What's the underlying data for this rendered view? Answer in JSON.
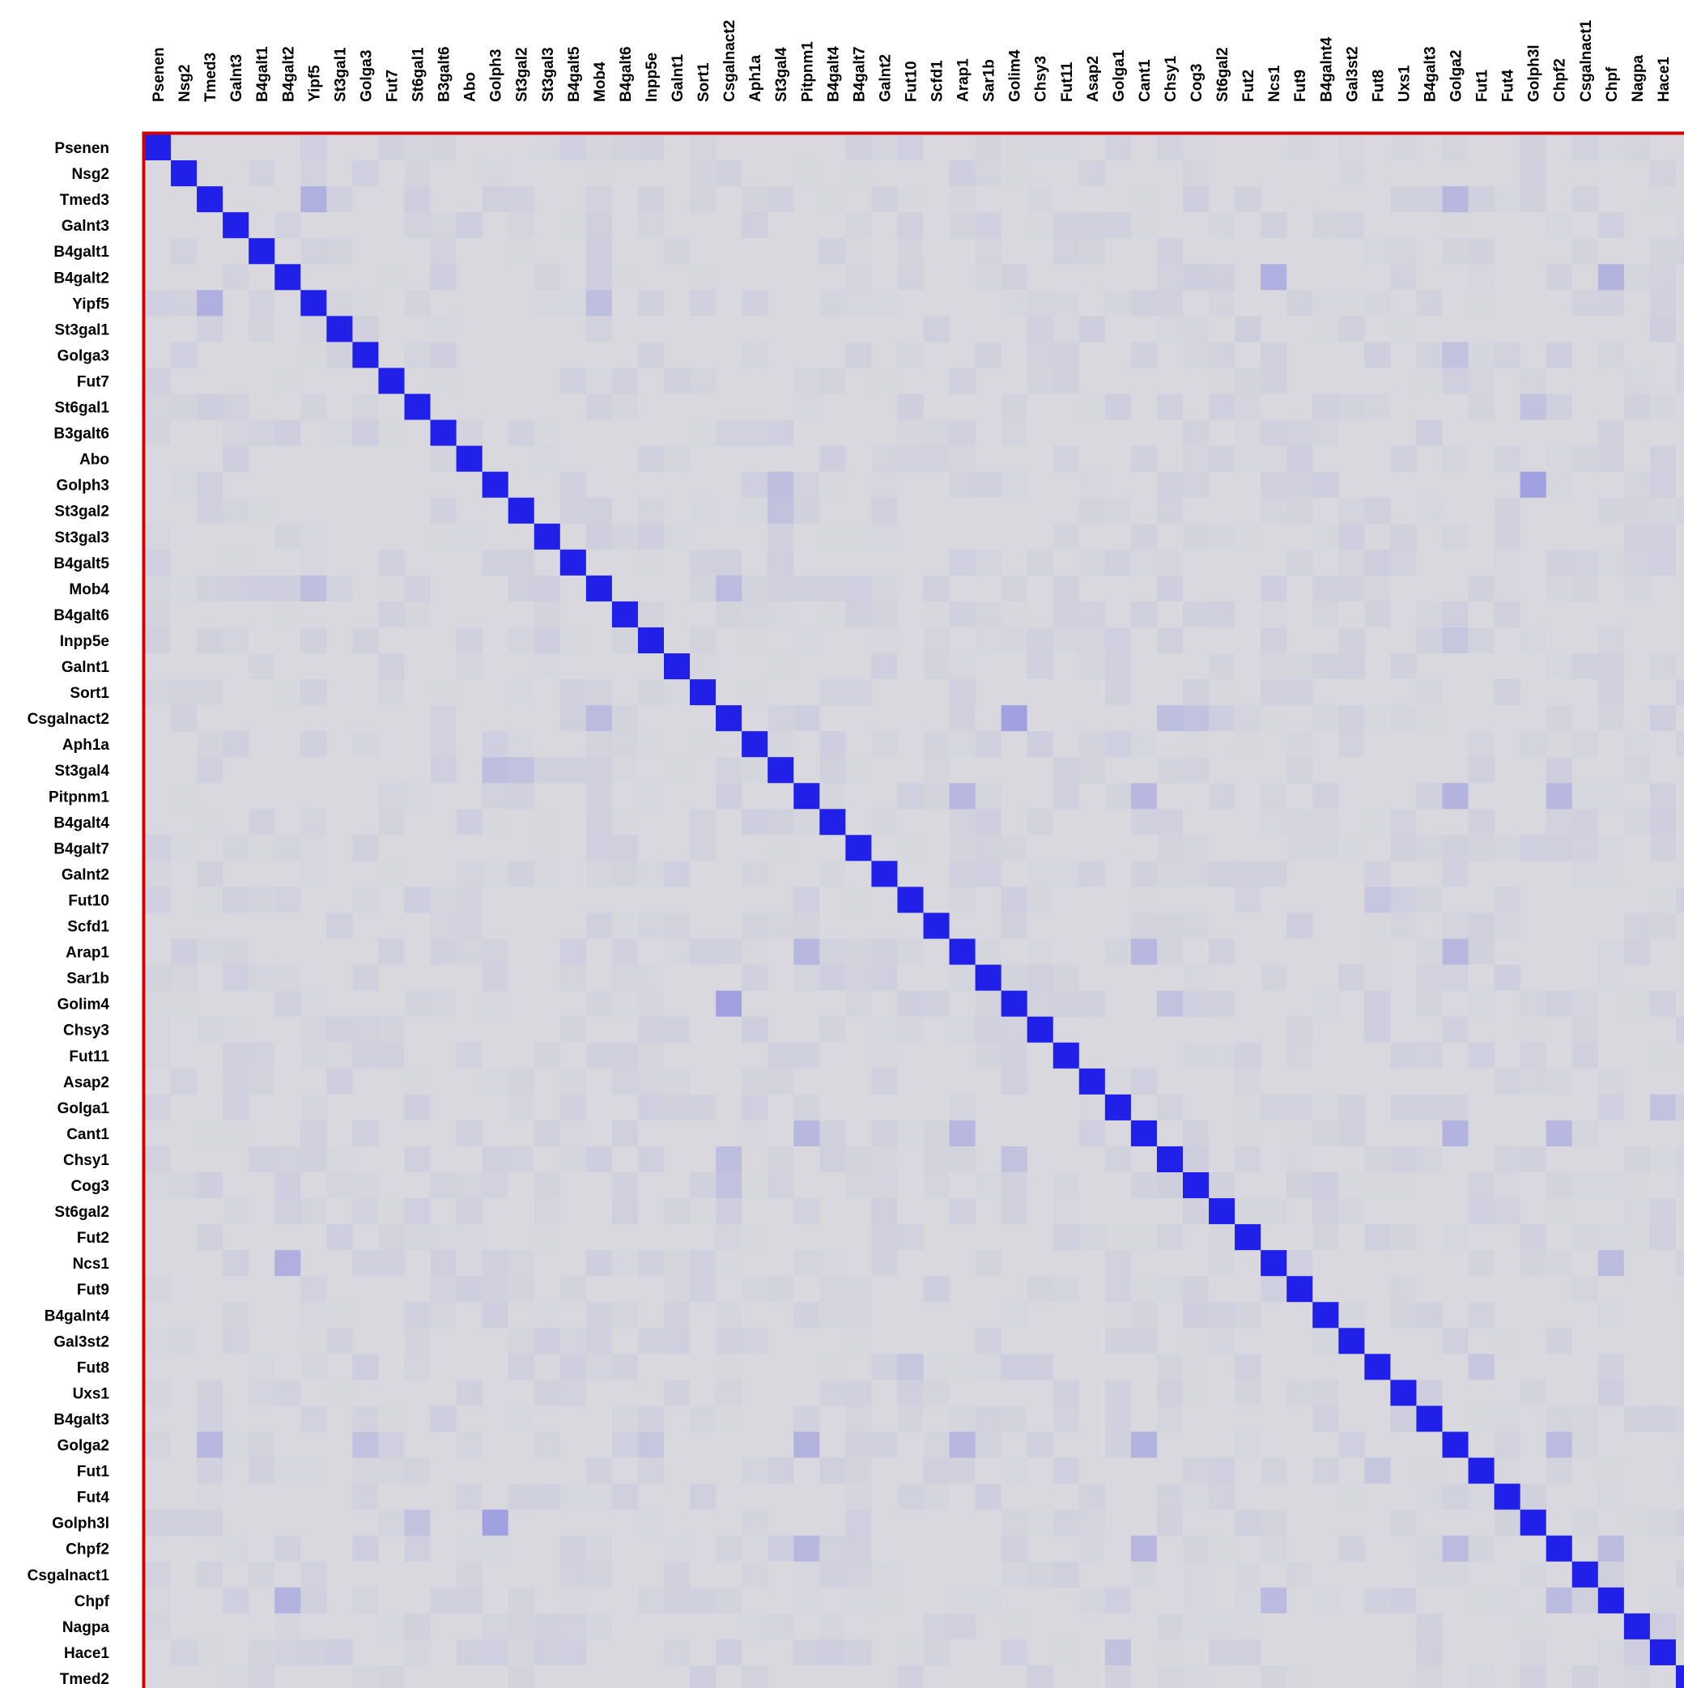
{
  "chart_data": {
    "type": "heatmap",
    "genes": [
      "Psenen",
      "Nsg2",
      "Tmed3",
      "Galnt3",
      "B4galt1",
      "B4galt2",
      "Yipf5",
      "St3gal1",
      "Golga3",
      "Fut7",
      "St6gal1",
      "B3galt6",
      "Abo",
      "Golph3",
      "St3gal2",
      "St3gal3",
      "B4galt5",
      "Mob4",
      "B4galt6",
      "Inpp5e",
      "Galnt1",
      "Sort1",
      "Csgalnact2",
      "Aph1a",
      "St3gal4",
      "Pitpnm1",
      "B4galt4",
      "B4galt7",
      "Galnt2",
      "Fut10",
      "Scfd1",
      "Arap1",
      "Sar1b",
      "Golim4",
      "Chsy3",
      "Fut11",
      "Asap2",
      "Golga1",
      "Cant1",
      "Chsy1",
      "Cog3",
      "St6gal2",
      "Fut2",
      "Ncs1",
      "Fut9",
      "B4galnt4",
      "Gal3st2",
      "Fut8",
      "Uxs1",
      "B4galt3",
      "Golga2",
      "Fut1",
      "Fut4",
      "Golph3l",
      "Chpf2",
      "Csgalnact1",
      "Chpf",
      "Nagpa",
      "Hace1",
      "Tmed2"
    ],
    "diagonal_value": 1.0,
    "offdiag_range": [
      0.0,
      0.35
    ],
    "colors": {
      "high": "#2020e8",
      "low": "#d8d8de",
      "border": "#d40000"
    },
    "notable_pairs": [
      [
        "Golph3",
        "Golph3l",
        0.3
      ],
      [
        "Csgalnact2",
        "Golim4",
        0.3
      ],
      [
        "Tmed3",
        "Yipf5",
        0.22
      ],
      [
        "Tmed3",
        "Golga2",
        0.18
      ],
      [
        "B4galt2",
        "Ncs1",
        0.22
      ],
      [
        "B4galt2",
        "Chpf",
        0.2
      ],
      [
        "Pitpnm1",
        "Cant1",
        0.18
      ],
      [
        "Pitpnm1",
        "Golga2",
        0.2
      ],
      [
        "Pitpnm1",
        "Arap1",
        0.18
      ],
      [
        "Pitpnm1",
        "Chpf2",
        0.18
      ],
      [
        "Arap1",
        "Cant1",
        0.18
      ],
      [
        "Arap1",
        "Golga2",
        0.18
      ],
      [
        "Cant1",
        "Golga2",
        0.2
      ],
      [
        "Cant1",
        "Chpf2",
        0.18
      ],
      [
        "Golga2",
        "Chpf2",
        0.16
      ],
      [
        "Chpf",
        "Chpf2",
        0.16
      ],
      [
        "Chpf",
        "Ncs1",
        0.16
      ],
      [
        "Mob4",
        "Csgalnact2",
        0.16
      ],
      [
        "Mob4",
        "Yipf5",
        0.14
      ],
      [
        "Golph3",
        "St3gal4",
        0.14
      ],
      [
        "St3gal2",
        "St3gal4",
        0.12
      ],
      [
        "Chsy1",
        "Csgalnact2",
        0.14
      ],
      [
        "Cog3",
        "Csgalnact2",
        0.12
      ],
      [
        "Chsy1",
        "Golim4",
        0.12
      ],
      [
        "Fut8",
        "Fut10",
        0.1
      ],
      [
        "Hace1",
        "Golga1",
        0.12
      ],
      [
        "Fut1",
        "Fut8",
        0.1
      ],
      [
        "St6gal1",
        "Golph3l",
        0.12
      ],
      [
        "Golga3",
        "Golga2",
        0.12
      ],
      [
        "Inpp5e",
        "Golga2",
        0.1
      ],
      [
        "Nagpa",
        "Hace1",
        0.06
      ]
    ],
    "visible_cols": 59
  }
}
